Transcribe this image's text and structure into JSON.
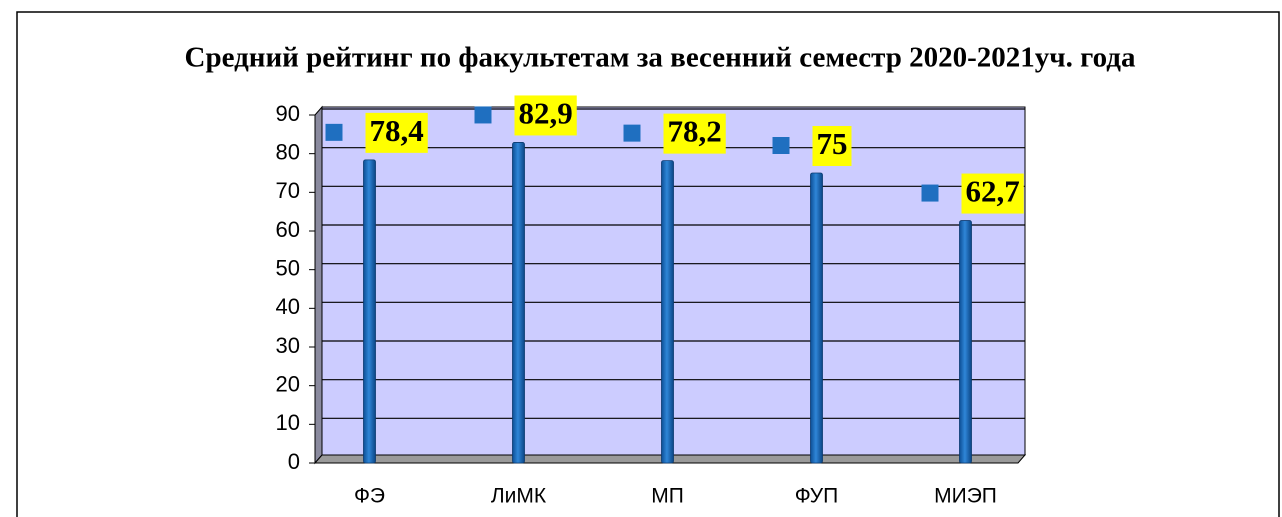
{
  "chart_data": {
    "type": "bar",
    "title": "Средний рейтинг по факультетам  за весенний семестр 2020-2021уч. года",
    "categories": [
      "ФЭ",
      "ЛиМК",
      "МП",
      "ФУП",
      "МИЭП"
    ],
    "values": [
      78.4,
      82.9,
      78.2,
      75,
      62.7
    ],
    "value_labels": [
      "78,4",
      "82,9",
      "78,2",
      "75",
      "62,7"
    ],
    "color": "#1f6fc0",
    "ylim": [
      0,
      90
    ],
    "yticks": [
      0,
      10,
      20,
      30,
      40,
      50,
      60,
      70,
      80,
      90
    ],
    "grid": true
  }
}
